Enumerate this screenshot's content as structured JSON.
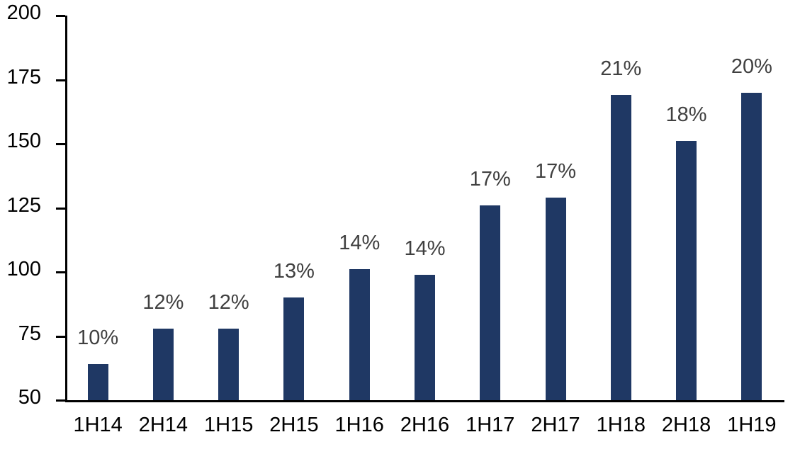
{
  "chart_data": {
    "type": "bar",
    "title": "",
    "xlabel": "",
    "ylabel": "",
    "categories": [
      "1H14",
      "2H14",
      "1H15",
      "2H15",
      "1H16",
      "2H16",
      "1H17",
      "2H17",
      "1H18",
      "2H18",
      "1H19"
    ],
    "values": [
      64,
      78,
      78,
      90,
      101,
      99,
      126,
      129,
      169,
      151,
      170
    ],
    "bar_labels": [
      "10%",
      "12%",
      "12%",
      "13%",
      "14%",
      "14%",
      "17%",
      "17%",
      "21%",
      "18%",
      "20%"
    ],
    "ylim": [
      50,
      200
    ],
    "yticks": [
      50,
      75,
      100,
      125,
      150,
      175,
      200
    ],
    "grid": false,
    "legend": "none",
    "colors": {
      "bar": "#1F3864",
      "bar_label": "#404040",
      "axis_text": "#000000",
      "axis_line": "#000000",
      "background": "#FFFFFF"
    }
  }
}
